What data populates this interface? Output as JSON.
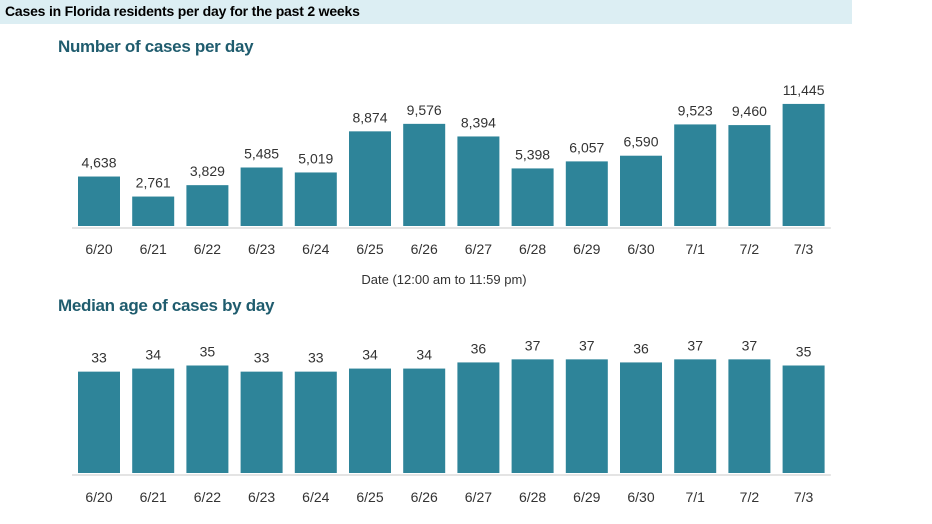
{
  "header": {
    "title": "Cases in Florida residents per day for the past 2 weeks"
  },
  "colors": {
    "bar": "#2e8499",
    "header_bg": "#dceef3",
    "title": "#1f5c6e"
  },
  "chart_data": [
    {
      "type": "bar",
      "title": "Number of cases per day",
      "xlabel": "Date (12:00 am to 11:59 pm)",
      "ylabel": "",
      "categories": [
        "6/20",
        "6/21",
        "6/22",
        "6/23",
        "6/24",
        "6/25",
        "6/26",
        "6/27",
        "6/28",
        "6/29",
        "6/30",
        "7/1",
        "7/2",
        "7/3"
      ],
      "values": [
        4638,
        2761,
        3829,
        5485,
        5019,
        8874,
        9576,
        8394,
        5398,
        6057,
        6590,
        9523,
        9460,
        11445
      ],
      "value_labels": [
        "4,638",
        "2,761",
        "3,829",
        "5,485",
        "5,019",
        "8,874",
        "9,576",
        "8,394",
        "5,398",
        "6,057",
        "6,590",
        "9,523",
        "9,460",
        "11,445"
      ],
      "ylim": [
        0,
        12000
      ],
      "grid": false,
      "legend": "none"
    },
    {
      "type": "bar",
      "title": "Median age of cases by day",
      "xlabel": "",
      "ylabel": "",
      "categories": [
        "6/20",
        "6/21",
        "6/22",
        "6/23",
        "6/24",
        "6/25",
        "6/26",
        "6/27",
        "6/28",
        "6/29",
        "6/30",
        "7/1",
        "7/2",
        "7/3"
      ],
      "values": [
        33,
        34,
        35,
        33,
        33,
        34,
        34,
        36,
        37,
        37,
        36,
        37,
        37,
        35
      ],
      "value_labels": [
        "33",
        "34",
        "35",
        "33",
        "33",
        "34",
        "34",
        "36",
        "37",
        "37",
        "36",
        "37",
        "37",
        "35"
      ],
      "ylim": [
        0,
        42
      ],
      "grid": false,
      "legend": "none"
    }
  ]
}
